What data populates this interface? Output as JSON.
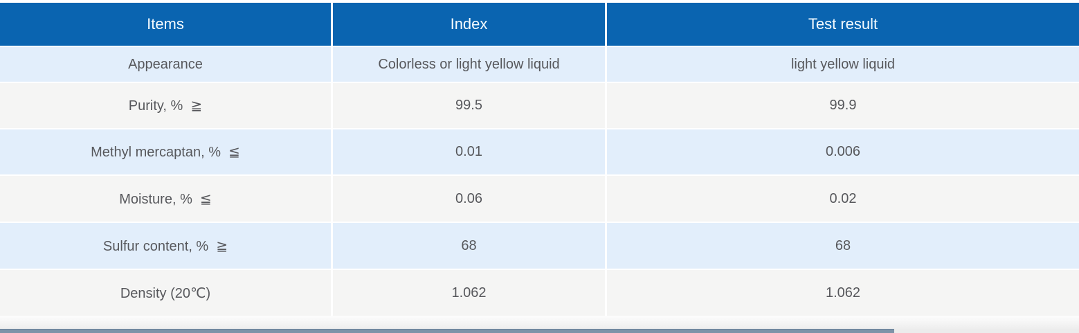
{
  "table": {
    "columns": [
      {
        "label": "Items"
      },
      {
        "label": "Index"
      },
      {
        "label": "Test result"
      }
    ],
    "rows": [
      {
        "item": "Appearance",
        "index": "Colorless or light yellow liquid",
        "result": "light yellow liquid"
      },
      {
        "item": "Purity, %  ≧",
        "index": "99.5",
        "result": "99.9"
      },
      {
        "item": "Methyl mercaptan, %  ≦",
        "index": "0.01",
        "result": "0.006"
      },
      {
        "item": "Moisture, %  ≦",
        "index": "0.06",
        "result": "0.02"
      },
      {
        "item": "Sulfur content, %  ≧",
        "index": "68",
        "result": "68"
      },
      {
        "item": "Density (20℃)",
        "index": "1.062",
        "result": "1.062"
      }
    ]
  },
  "colors": {
    "header_bg": "#0a64b0",
    "header_text": "#f4fbff",
    "row_blue_bg": "#e2eefb",
    "row_gray_bg": "#f5f5f4",
    "body_text": "#57585c",
    "scrollbar_thumb": "#7e93a8",
    "scrollbar_track": "#ececec"
  }
}
